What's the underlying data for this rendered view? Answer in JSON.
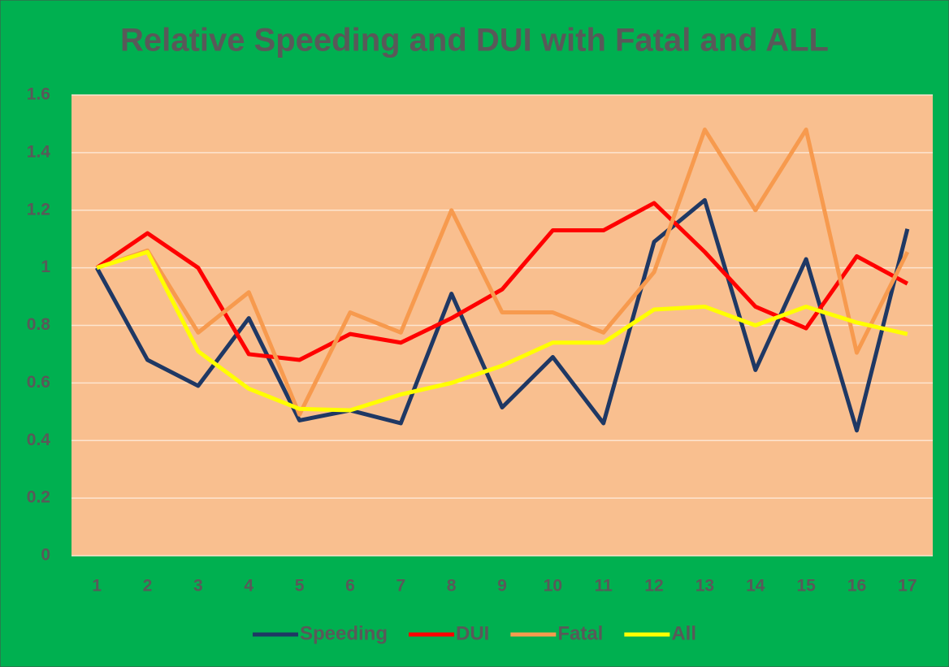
{
  "chart_data": {
    "type": "line",
    "title": "Relative Speeding and DUI with Fatal and ALL",
    "categories": [
      "1",
      "2",
      "3",
      "4",
      "5",
      "6",
      "7",
      "8",
      "9",
      "10",
      "11",
      "12",
      "13",
      "14",
      "15",
      "16",
      "17"
    ],
    "series": [
      {
        "name": "Speeding",
        "color": "#1f3864",
        "values": [
          1.0,
          0.68,
          0.59,
          0.825,
          0.47,
          0.505,
          0.46,
          0.91,
          0.515,
          0.69,
          0.46,
          1.09,
          1.235,
          0.645,
          1.03,
          0.435,
          1.135
        ]
      },
      {
        "name": "DUI",
        "color": "#ff0000",
        "values": [
          1.0,
          1.12,
          1.0,
          0.7,
          0.68,
          0.77,
          0.74,
          0.825,
          0.925,
          1.13,
          1.13,
          1.225,
          1.055,
          0.865,
          0.79,
          1.04,
          0.945
        ]
      },
      {
        "name": "Fatal",
        "color": "#f79a4e",
        "values": [
          1.0,
          1.06,
          0.775,
          0.915,
          0.49,
          0.845,
          0.775,
          1.2,
          0.845,
          0.845,
          0.775,
          0.985,
          1.48,
          1.2,
          1.48,
          0.705,
          1.055
        ]
      },
      {
        "name": "All",
        "color": "#ffff00",
        "values": [
          1.0,
          1.055,
          0.71,
          0.58,
          0.51,
          0.505,
          0.56,
          0.6,
          0.66,
          0.74,
          0.74,
          0.855,
          0.865,
          0.8,
          0.865,
          0.81,
          0.77
        ]
      }
    ],
    "ylim": [
      0,
      1.6
    ],
    "yticks": [
      0,
      0.2,
      0.4,
      0.6,
      0.8,
      1,
      1.2,
      1.4,
      1.6
    ],
    "grid": true,
    "legend": "bottom"
  }
}
